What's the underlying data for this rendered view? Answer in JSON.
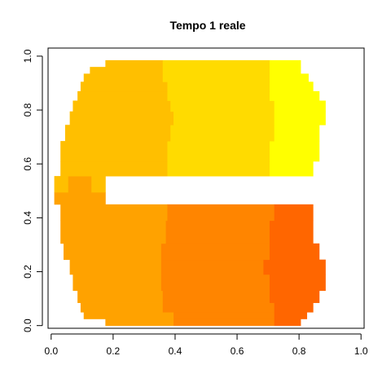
{
  "chart_data": {
    "type": "heatmap",
    "title": "Tempo 1 reale",
    "xlabel": "",
    "ylabel": "",
    "xlim": [
      -0.01,
      1.01
    ],
    "ylim": [
      -0.01,
      1.03
    ],
    "xticks": [
      0.0,
      0.2,
      0.4,
      0.6,
      0.8,
      1.0
    ],
    "yticks": [
      0.0,
      0.2,
      0.4,
      0.6,
      0.8,
      1.0
    ],
    "xtick_labels": [
      "0.0",
      "0.2",
      "0.4",
      "0.6",
      "0.8",
      "1.0"
    ],
    "ytick_labels": [
      "0.0",
      "0.2",
      "0.4",
      "0.6",
      "0.8",
      "1.0"
    ],
    "grid": false,
    "legend": "none",
    "colors": {
      "c1": "#FF6600",
      "c2": "#FF8500",
      "c3": "#FFA200",
      "c4": "#FFBF00",
      "c5": "#FFDB00",
      "c6": "#FFFF00"
    },
    "rows": [
      {
        "y": [
          0.0,
          0.025
        ],
        "segs": [
          [
            0.175,
            0.395,
            "c3"
          ],
          [
            0.395,
            0.72,
            "c2"
          ],
          [
            0.72,
            0.805,
            "c1"
          ]
        ]
      },
      {
        "y": [
          0.025,
          0.05
        ],
        "segs": [
          [
            0.105,
            0.395,
            "c3"
          ],
          [
            0.395,
            0.72,
            "c2"
          ],
          [
            0.72,
            0.825,
            "c1"
          ]
        ]
      },
      {
        "y": [
          0.05,
          0.085
        ],
        "segs": [
          [
            0.095,
            0.36,
            "c3"
          ],
          [
            0.36,
            0.72,
            "c2"
          ],
          [
            0.72,
            0.845,
            "c1"
          ]
        ]
      },
      {
        "y": [
          0.085,
          0.13
        ],
        "segs": [
          [
            0.085,
            0.36,
            "c3"
          ],
          [
            0.36,
            0.705,
            "c2"
          ],
          [
            0.705,
            0.865,
            "c1"
          ]
        ]
      },
      {
        "y": [
          0.13,
          0.19
        ],
        "segs": [
          [
            0.07,
            0.355,
            "c3"
          ],
          [
            0.355,
            0.705,
            "c2"
          ],
          [
            0.705,
            0.885,
            "c1"
          ]
        ]
      },
      {
        "y": [
          0.19,
          0.245
        ],
        "segs": [
          [
            0.06,
            0.355,
            "c3"
          ],
          [
            0.355,
            0.685,
            "c2"
          ],
          [
            0.685,
            0.885,
            "c1"
          ]
        ]
      },
      {
        "y": [
          0.245,
          0.305
        ],
        "segs": [
          [
            0.04,
            0.355,
            "c3"
          ],
          [
            0.355,
            0.705,
            "c2"
          ],
          [
            0.705,
            0.865,
            "c1"
          ]
        ]
      },
      {
        "y": [
          0.305,
          0.39
        ],
        "segs": [
          [
            0.03,
            0.37,
            "c3"
          ],
          [
            0.37,
            0.705,
            "c2"
          ],
          [
            0.705,
            0.845,
            "c1"
          ]
        ]
      },
      {
        "y": [
          0.39,
          0.45
        ],
        "segs": [
          [
            0.03,
            0.375,
            "c3"
          ],
          [
            0.375,
            0.72,
            "c2"
          ],
          [
            0.72,
            0.845,
            "c1"
          ]
        ]
      },
      {
        "y": [
          0.45,
          0.495
        ],
        "segs": [
          [
            0.01,
            0.175,
            "c3"
          ]
        ]
      },
      {
        "y": [
          0.495,
          0.555
        ],
        "segs": [
          [
            0.01,
            0.055,
            "c4"
          ],
          [
            0.055,
            0.13,
            "c3"
          ],
          [
            0.13,
            0.175,
            "c4"
          ]
        ]
      },
      {
        "y": [
          0.555,
          0.61
        ],
        "segs": [
          [
            0.03,
            0.375,
            "c4"
          ],
          [
            0.375,
            0.705,
            "c5"
          ],
          [
            0.705,
            0.845,
            "c6"
          ]
        ]
      },
      {
        "y": [
          0.61,
          0.685
        ],
        "segs": [
          [
            0.03,
            0.375,
            "c4"
          ],
          [
            0.375,
            0.705,
            "c5"
          ],
          [
            0.705,
            0.865,
            "c6"
          ]
        ]
      },
      {
        "y": [
          0.685,
          0.745
        ],
        "segs": [
          [
            0.045,
            0.385,
            "c4"
          ],
          [
            0.385,
            0.72,
            "c5"
          ],
          [
            0.72,
            0.865,
            "c6"
          ]
        ]
      },
      {
        "y": [
          0.745,
          0.795
        ],
        "segs": [
          [
            0.06,
            0.395,
            "c4"
          ],
          [
            0.395,
            0.72,
            "c5"
          ],
          [
            0.72,
            0.885,
            "c6"
          ]
        ]
      },
      {
        "y": [
          0.795,
          0.835
        ],
        "segs": [
          [
            0.07,
            0.385,
            "c4"
          ],
          [
            0.385,
            0.72,
            "c5"
          ],
          [
            0.72,
            0.885,
            "c6"
          ]
        ]
      },
      {
        "y": [
          0.835,
          0.87
        ],
        "segs": [
          [
            0.085,
            0.375,
            "c4"
          ],
          [
            0.375,
            0.705,
            "c5"
          ],
          [
            0.705,
            0.865,
            "c6"
          ]
        ]
      },
      {
        "y": [
          0.87,
          0.905
        ],
        "segs": [
          [
            0.095,
            0.375,
            "c4"
          ],
          [
            0.375,
            0.705,
            "c5"
          ],
          [
            0.705,
            0.845,
            "c6"
          ]
        ]
      },
      {
        "y": [
          0.905,
          0.935
        ],
        "segs": [
          [
            0.105,
            0.36,
            "c4"
          ],
          [
            0.36,
            0.705,
            "c5"
          ],
          [
            0.705,
            0.83,
            "c6"
          ]
        ]
      },
      {
        "y": [
          0.935,
          0.96
        ],
        "segs": [
          [
            0.125,
            0.36,
            "c4"
          ],
          [
            0.36,
            0.705,
            "c5"
          ],
          [
            0.705,
            0.805,
            "c6"
          ]
        ]
      },
      {
        "y": [
          0.96,
          0.985
        ],
        "segs": [
          [
            0.175,
            0.36,
            "c4"
          ],
          [
            0.36,
            0.705,
            "c5"
          ],
          [
            0.705,
            0.805,
            "c6"
          ]
        ]
      }
    ]
  }
}
